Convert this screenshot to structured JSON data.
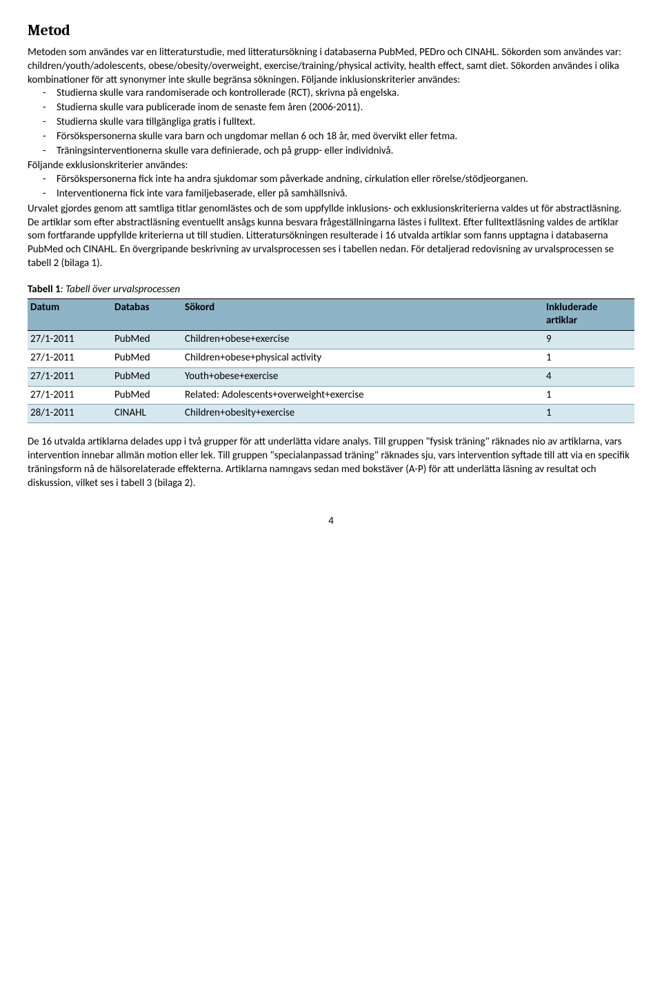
{
  "heading": "Metod",
  "para1": "Metoden som användes var en litteraturstudie, med litteratursökning i databaserna PubMed, PEDro och CINAHL. Sökorden som användes var: children/youth/adolescents, obese/obesity/overweight, exercise/training/physical activity, health effect, samt diet. Sökorden användes i olika kombinationer för att synonymer inte skulle begränsa sökningen. Följande inklusionskriterier användes:",
  "inclusion": [
    "Studierna skulle vara randomiserade och kontrollerade (RCT), skrivna på engelska.",
    "Studierna skulle vara publicerade inom de senaste fem åren (2006-2011).",
    "Studierna skulle vara tillgängliga gratis i fulltext.",
    "Försökspersonerna skulle vara barn och ungdomar mellan 6 och 18 år, med övervikt eller fetma.",
    "Träningsinterventionerna skulle vara definierade, och på grupp- eller individnivå."
  ],
  "exclusion_intro": "Följande exklusionskriterier användes:",
  "exclusion": [
    "Försökspersonerna fick inte ha andra sjukdomar som påverkade andning, cirkulation eller rörelse/stödjeorganen.",
    "Interventionerna fick inte vara familjebaserade, eller på samhällsnivå."
  ],
  "para2": "Urvalet gjordes genom att samtliga titlar genomlästes och de som uppfyllde inklusions- och exklusionskriterierna valdes ut för abstractläsning. De artiklar som efter abstractläsning eventuellt ansågs kunna besvara frågeställningarna lästes i fulltext. Efter fulltextläsning valdes de artiklar som fortfarande uppfyllde kriterierna ut till studien. Litteratursökningen resulterade i 16 utvalda artiklar som fanns upptagna i databaserna PubMed och CINAHL. En övergripande beskrivning av urvalsprocessen ses i tabellen nedan. För detaljerad redovisning av urvalsprocessen se tabell 2 (bilaga 1).",
  "table": {
    "caption_bold": "Tabell 1",
    "caption_italic": ": Tabell över urvalsprocessen",
    "columns": [
      "Datum",
      "Databas",
      "Sökord",
      "Inkluderade artiklar"
    ],
    "header_bg": "#8db4c7",
    "row_alt_bg": "#d6e7ee",
    "rows": [
      {
        "date": "27/1-2011",
        "db": "PubMed",
        "search": "Children+obese+exercise",
        "count": "9"
      },
      {
        "date": "27/1-2011",
        "db": "PubMed",
        "search": "Children+obese+physical activity",
        "count": "1"
      },
      {
        "date": "27/1-2011",
        "db": "PubMed",
        "search": "Youth+obese+exercise",
        "count": "4"
      },
      {
        "date": "27/1-2011",
        "db": "PubMed",
        "search": "Related: Adolescents+overweight+exercise",
        "count": "1"
      },
      {
        "date": "28/1-2011",
        "db": "CINAHL",
        "search": "Children+obesity+exercise",
        "count": "1"
      }
    ]
  },
  "para3": "De 16 utvalda artiklarna delades upp i två grupper för att underlätta vidare analys. Till gruppen \"fysisk träning\" räknades nio av artiklarna, vars intervention innebar allmän motion eller lek. Till gruppen \"specialanpassad träning\" räknades sju, vars intervention syftade till att via en specifik träningsform nå de hälsorelaterade effekterna. Artiklarna namngavs sedan med bokstäver (A-P) för att underlätta läsning av resultat och diskussion, vilket ses i tabell 3 (bilaga 2).",
  "page_number": "4"
}
